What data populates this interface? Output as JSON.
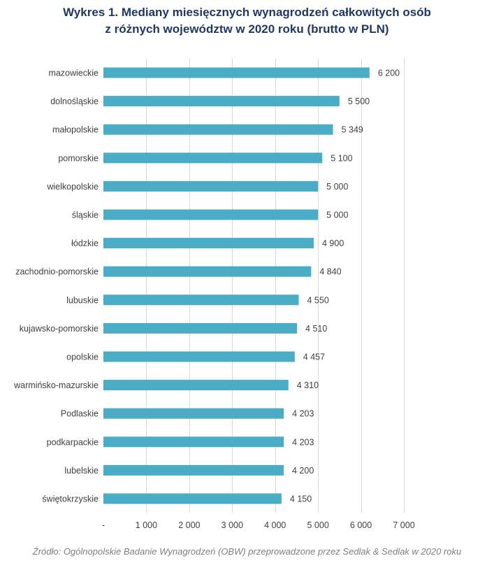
{
  "chart_data": {
    "type": "bar",
    "orientation": "horizontal",
    "title_lines": [
      "Wykres 1. Mediany miesięcznych wynagrodzeń całkowitych osób",
      "z różnych województw w 2020 roku (brutto w PLN)"
    ],
    "categories": [
      "mazowieckie",
      "dolnośląskie",
      "małopolskie",
      "pomorskie",
      "wielkopolskie",
      "śląskie",
      "łódzkie",
      "zachodnio-pomorskie",
      "lubuskie",
      "kujawsko-pomorskie",
      "opolskie",
      "warmińsko-mazurskie",
      "Podlaskie",
      "podkarpackie",
      "lubelskie",
      "świętokrzyskie"
    ],
    "values": [
      6200,
      5500,
      5349,
      5100,
      5000,
      5000,
      4900,
      4840,
      4550,
      4510,
      4457,
      4310,
      4203,
      4203,
      4200,
      4150
    ],
    "value_labels": [
      "6 200",
      "5 500",
      "5 349",
      "5 100",
      "5 000",
      "5 000",
      "4 900",
      "4 840",
      "4 550",
      "4 510",
      "4 457",
      "4 310",
      "4 203",
      "4 203",
      "4 200",
      "4 150"
    ],
    "xlim": [
      0,
      7000
    ],
    "x_ticks": [
      0,
      1000,
      2000,
      3000,
      4000,
      5000,
      6000,
      7000
    ],
    "x_tick_labels": [
      "-",
      "1 000",
      "2 000",
      "3 000",
      "4 000",
      "5 000",
      "6 000",
      "7 000"
    ],
    "grid": true,
    "bar_color": "#4bacc6",
    "grid_color": "#d9d9d9",
    "source": "Źródło: Ogólnopolskie Badanie Wynagrodzeń (OBW) przeprowadzone przez Sedlak & Sedlak w 2020 roku"
  },
  "colors": {
    "title": "#1f3864",
    "text": "#404040",
    "source_text": "#7f7f7f"
  }
}
